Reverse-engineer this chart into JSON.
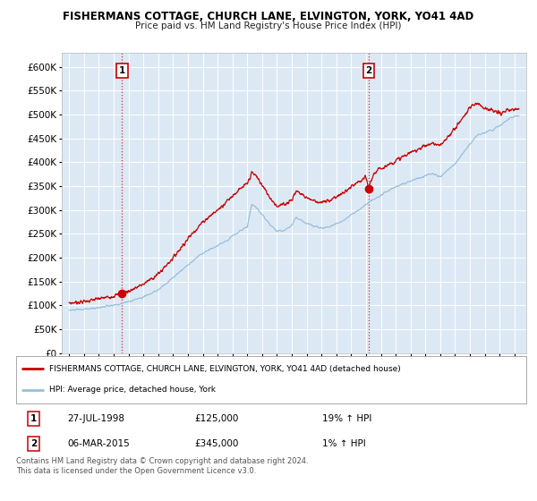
{
  "title": "FISHERMANS COTTAGE, CHURCH LANE, ELVINGTON, YORK, YO41 4AD",
  "subtitle": "Price paid vs. HM Land Registry's House Price Index (HPI)",
  "fig_bg_color": "#ffffff",
  "plot_bg_color": "#dce9f5",
  "grid_color": "#ffffff",
  "red_line_color": "#cc0000",
  "blue_line_color": "#9abfd9",
  "sale1_year": 1998.57,
  "sale1_price": 125000,
  "sale1_label": "1",
  "sale1_date": "27-JUL-1998",
  "sale1_pct": "19%",
  "sale2_year": 2015.17,
  "sale2_price": 345000,
  "sale2_label": "2",
  "sale2_date": "06-MAR-2015",
  "sale2_pct": "1%",
  "legend_line1": "FISHERMANS COTTAGE, CHURCH LANE, ELVINGTON, YORK, YO41 4AD (detached house)",
  "legend_line2": "HPI: Average price, detached house, York",
  "footer1": "Contains HM Land Registry data © Crown copyright and database right 2024.",
  "footer2": "This data is licensed under the Open Government Licence v3.0.",
  "ylim_min": 0,
  "ylim_max": 630000,
  "xmin": 1994.5,
  "xmax": 2025.8
}
